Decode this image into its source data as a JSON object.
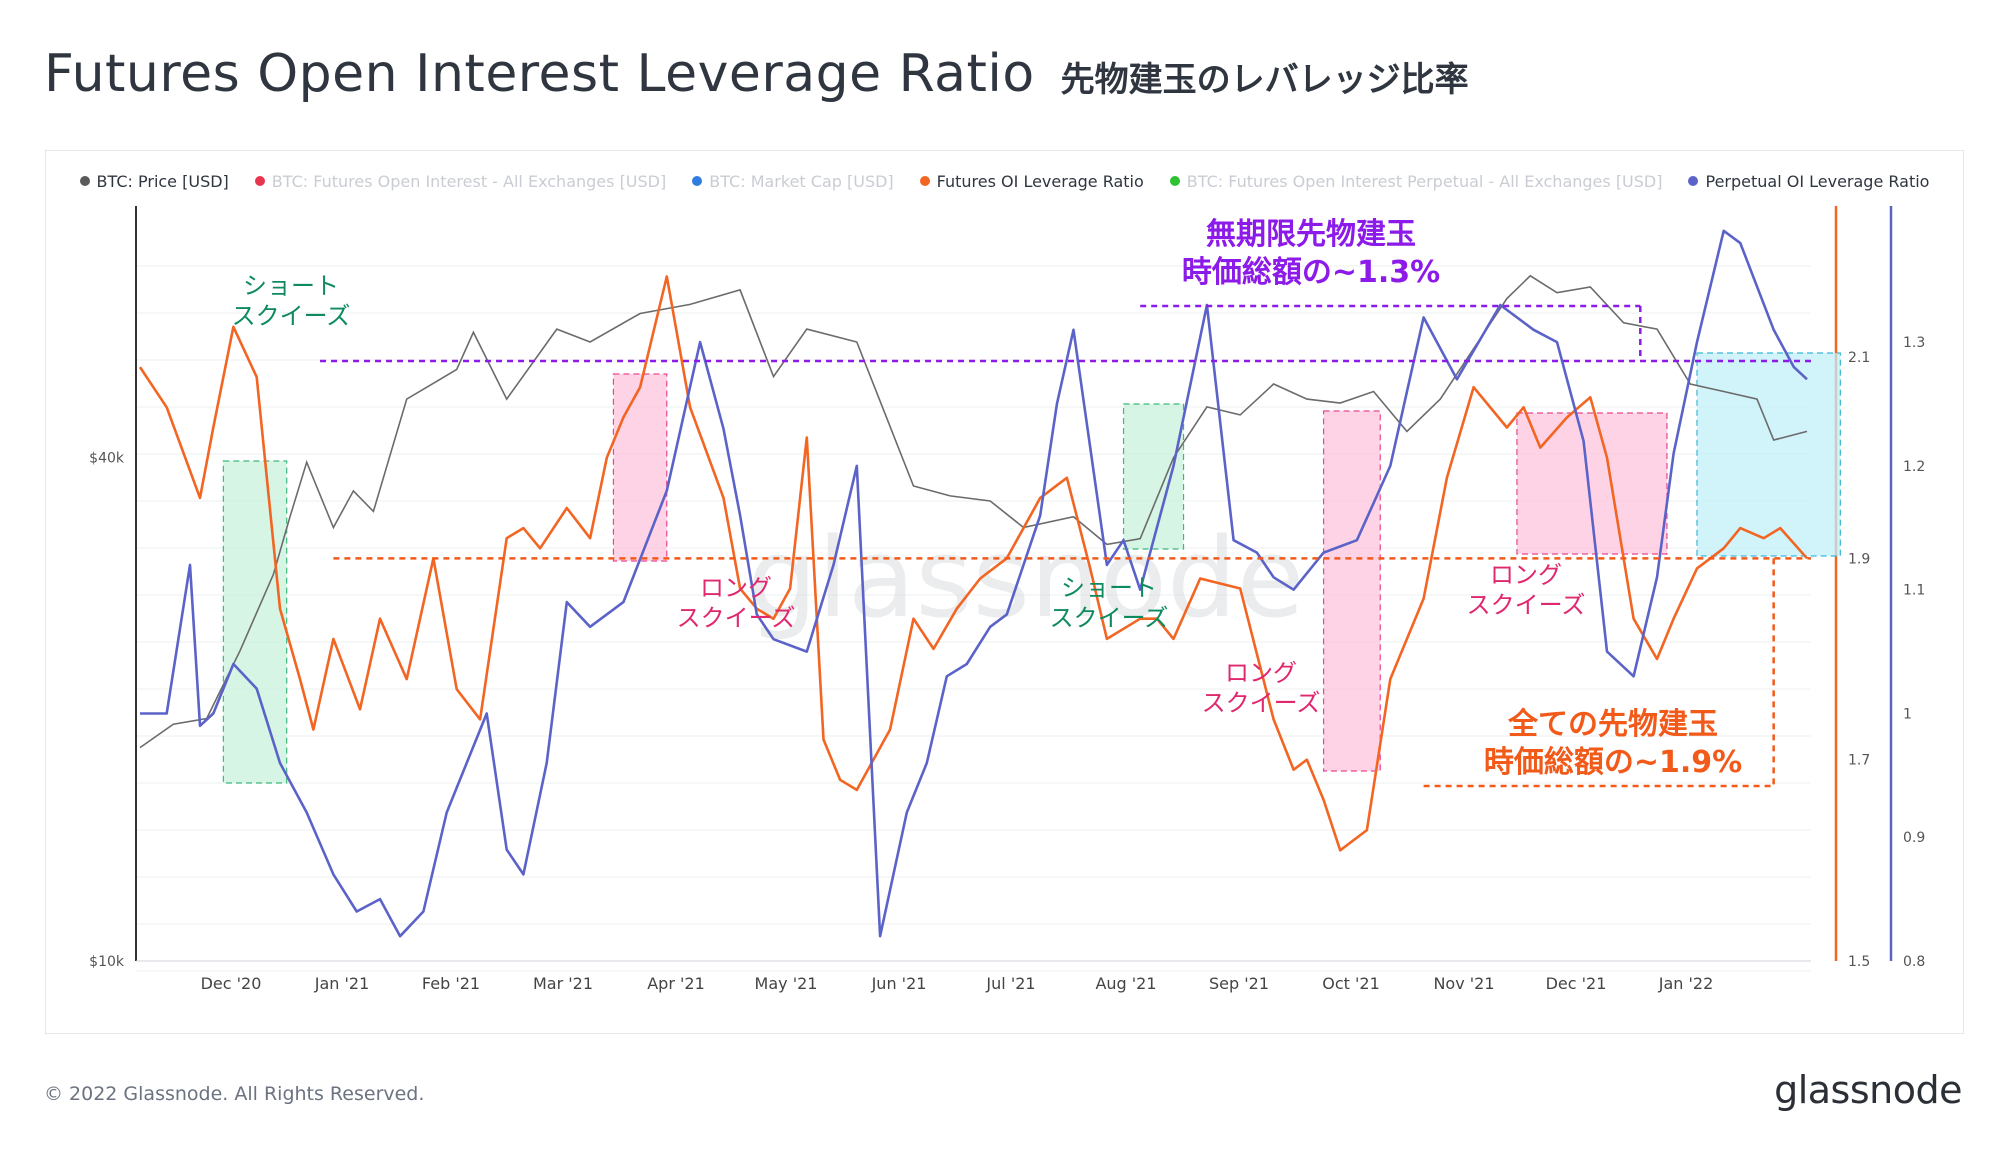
{
  "header": {
    "title": "Futures Open Interest Leverage Ratio",
    "subtitle": "先物建玉のレバレッジ比率"
  },
  "legend": [
    {
      "label": "BTC: Price [USD]",
      "color": "#5a5a5a",
      "active": true
    },
    {
      "label": "BTC: Futures Open Interest - All Exchanges [USD]",
      "color": "#e8354f",
      "active": false
    },
    {
      "label": "BTC: Market Cap [USD]",
      "color": "#2f7de1",
      "active": false
    },
    {
      "label": "Futures OI Leverage Ratio",
      "color": "#f26522",
      "active": true
    },
    {
      "label": "BTC: Futures Open Interest Perpetual - All Exchanges [USD]",
      "color": "#2fc134",
      "active": false
    },
    {
      "label": "Perpetual OI Leverage Ratio",
      "color": "#5b63c8",
      "active": true
    }
  ],
  "chart_data": {
    "type": "line",
    "x_tick_labels": [
      "Dec '20",
      "Jan '21",
      "Feb '21",
      "Mar '21",
      "Apr '21",
      "May '21",
      "Jun '21",
      "Jul '21",
      "Aug '21",
      "Sep '21",
      "Oct '21",
      "Nov '21",
      "Dec '21",
      "Jan '22"
    ],
    "price_axis": {
      "scale": "log",
      "range": [
        10000,
        80000
      ],
      "ticks": [
        "$10k",
        "$40k"
      ]
    },
    "futures_axis": {
      "range": [
        1.5,
        2.25
      ],
      "ticks": [
        "1.5",
        "1.7",
        "1.9",
        "2.1"
      ]
    },
    "perp_axis": {
      "range": [
        0.8,
        1.41
      ],
      "ticks": [
        "0.8",
        "0.9",
        "1",
        "1.1",
        "1.2",
        "1.3"
      ]
    },
    "series": [
      {
        "name": "BTC: Price [USD]",
        "color": "#6b6b6b",
        "axis": "price",
        "x": [
          0,
          10,
          20,
          30,
          40,
          45,
          50,
          58,
          64,
          70,
          80,
          95,
          100,
          110,
          125,
          135,
          150,
          165,
          180,
          190,
          200,
          215,
          232,
          243,
          255,
          265,
          280,
          290,
          300,
          310,
          320,
          330,
          340,
          350,
          360,
          370,
          380,
          390,
          400,
          410,
          417,
          425,
          435,
          445,
          455,
          465,
          475,
          485,
          490,
          500
        ],
        "values": [
          18000,
          19200,
          19500,
          23500,
          29000,
          34000,
          39500,
          33000,
          36500,
          34500,
          47000,
          51000,
          56500,
          47000,
          57000,
          55000,
          59500,
          61000,
          63500,
          50000,
          57000,
          55000,
          37000,
          36000,
          35500,
          33000,
          34000,
          31500,
          32000,
          40000,
          46000,
          45000,
          49000,
          47000,
          46500,
          48000,
          43000,
          47000,
          54000,
          62000,
          66000,
          63000,
          64000,
          58000,
          57000,
          49000,
          48000,
          47000,
          42000,
          43000
        ]
      },
      {
        "name": "Futures OI Leverage Ratio",
        "color": "#f26522",
        "axis": "futures",
        "x": [
          0,
          8,
          18,
          22,
          28,
          35,
          42,
          48,
          52,
          58,
          66,
          72,
          80,
          88,
          95,
          102,
          110,
          115,
          120,
          128,
          135,
          140,
          145,
          150,
          158,
          165,
          175,
          180,
          185,
          190,
          195,
          200,
          205,
          210,
          215,
          225,
          232,
          238,
          245,
          252,
          260,
          270,
          278,
          285,
          290,
          295,
          300,
          305,
          310,
          318,
          330,
          340,
          346,
          350,
          355,
          360,
          368,
          375,
          385,
          392,
          400,
          410,
          415,
          420,
          428,
          435,
          440,
          448,
          455,
          460,
          467,
          475,
          480,
          487,
          492,
          500
        ],
        "values": [
          2.09,
          2.05,
          1.96,
          2.03,
          2.13,
          2.08,
          1.85,
          1.78,
          1.73,
          1.82,
          1.75,
          1.84,
          1.78,
          1.9,
          1.77,
          1.74,
          1.92,
          1.93,
          1.91,
          1.95,
          1.92,
          2.0,
          2.04,
          2.07,
          2.18,
          2.05,
          1.96,
          1.87,
          1.85,
          1.84,
          1.87,
          2.02,
          1.72,
          1.68,
          1.67,
          1.73,
          1.84,
          1.81,
          1.85,
          1.88,
          1.9,
          1.96,
          1.98,
          1.89,
          1.82,
          1.83,
          1.84,
          1.84,
          1.82,
          1.88,
          1.87,
          1.74,
          1.69,
          1.7,
          1.66,
          1.61,
          1.63,
          1.78,
          1.86,
          1.98,
          2.07,
          2.03,
          2.05,
          2.01,
          2.04,
          2.06,
          2.0,
          1.84,
          1.8,
          1.84,
          1.89,
          1.91,
          1.93,
          1.92,
          1.93,
          1.9
        ]
      },
      {
        "name": "Perpetual OI Leverage Ratio",
        "color": "#5b63c8",
        "axis": "perp",
        "x": [
          0,
          8,
          15,
          18,
          22,
          28,
          35,
          42,
          50,
          58,
          65,
          72,
          78,
          85,
          92,
          98,
          104,
          110,
          115,
          122,
          128,
          135,
          145,
          158,
          168,
          175,
          180,
          185,
          190,
          200,
          208,
          215,
          222,
          230,
          236,
          242,
          248,
          255,
          260,
          270,
          275,
          280,
          290,
          295,
          300,
          310,
          320,
          328,
          335,
          340,
          346,
          355,
          365,
          375,
          385,
          395,
          408,
          418,
          425,
          433,
          440,
          448,
          455,
          460,
          467,
          475,
          480,
          490,
          496,
          500
        ],
        "values": [
          1.0,
          1.0,
          1.12,
          0.99,
          1.0,
          1.04,
          1.02,
          0.96,
          0.92,
          0.87,
          0.84,
          0.85,
          0.82,
          0.84,
          0.92,
          0.96,
          1.0,
          0.89,
          0.87,
          0.96,
          1.09,
          1.07,
          1.09,
          1.18,
          1.3,
          1.23,
          1.16,
          1.08,
          1.06,
          1.05,
          1.12,
          1.2,
          0.82,
          0.92,
          0.96,
          1.03,
          1.04,
          1.07,
          1.08,
          1.16,
          1.25,
          1.31,
          1.12,
          1.14,
          1.1,
          1.2,
          1.33,
          1.14,
          1.13,
          1.11,
          1.1,
          1.13,
          1.14,
          1.2,
          1.32,
          1.27,
          1.33,
          1.31,
          1.3,
          1.22,
          1.05,
          1.03,
          1.11,
          1.21,
          1.3,
          1.39,
          1.38,
          1.31,
          1.28,
          1.27
        ]
      }
    ],
    "annotations": {
      "green_label": "ショート\nスクイーズ",
      "pink_label": "ロング\nスクイーズ",
      "perp_note": "無期限先物建玉\n時価総額の~1.3%",
      "futures_note": "全ての先物建玉\n時価総額の~1.9%"
    },
    "watermark": "glassnode"
  },
  "annotations": {
    "short_squeeze_1": [
      "ショート",
      "スクイーズ"
    ],
    "short_squeeze_2": [
      "ショート",
      "スクイーズ"
    ],
    "long_squeeze_1": [
      "ロング",
      "スクイーズ"
    ],
    "long_squeeze_2": [
      "ロング",
      "スクイーズ"
    ],
    "long_squeeze_3": [
      "ロング",
      "スクイーズ"
    ],
    "perp_note": [
      "無期限先物建玉",
      "時価総額の~1.3%"
    ],
    "futures_note": [
      "全ての先物建玉",
      "時価総額の~1.9%"
    ]
  },
  "colors": {
    "price": "#6b6b6b",
    "futures": "#f26522",
    "perp": "#5b63c8",
    "short_squeeze": "#0f8a5f",
    "long_squeeze": "#e0286f",
    "perp_note": "#8c1ae8",
    "futures_note": "#f25a1a"
  },
  "footer": {
    "copyright": "© 2022 Glassnode. All Rights Reserved.",
    "logo": "glassnode"
  }
}
